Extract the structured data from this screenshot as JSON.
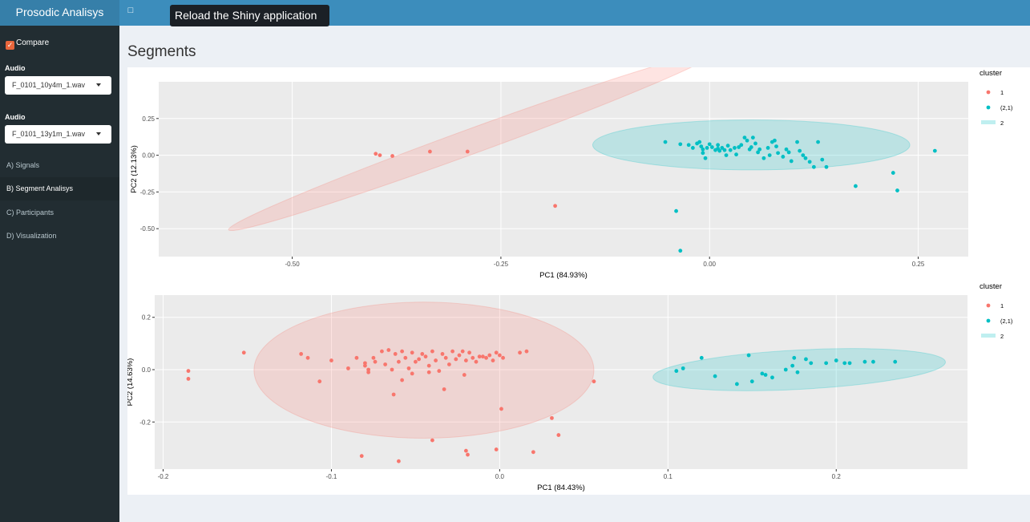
{
  "app": {
    "title": "Prosodic Analisys",
    "tooltip": "Reload the Shiny application"
  },
  "sidebar": {
    "compare_label": "Compare",
    "compare_checked": true,
    "audio1": {
      "label": "Audio",
      "value": "F_0101_10y4m_1.wav"
    },
    "audio2": {
      "label": "Audio",
      "value": "F_0101_13y1m_1.wav"
    },
    "menu": [
      {
        "label": "A) Signals",
        "active": false
      },
      {
        "label": "B) Segment Analisys",
        "active": true
      },
      {
        "label": "C) Participants",
        "active": false
      },
      {
        "label": "D) Visualization",
        "active": false
      }
    ]
  },
  "main": {
    "title": "Segments"
  },
  "colors": {
    "cluster1": "#f8766d",
    "cluster2": "#00bfc4",
    "panel_bg": "#ebebeb",
    "header": "#3c8dbc",
    "sidebar": "#222d32"
  },
  "chart_data": [
    {
      "type": "scatter",
      "xlabel": "PC1 (84.93%)",
      "ylabel": "PC2 (12.13%)",
      "xlim": [
        -0.66,
        0.31
      ],
      "ylim": [
        -0.69,
        0.5
      ],
      "xticks": [
        -0.5,
        -0.25,
        0.0,
        0.25
      ],
      "xtick_labels": [
        "-0.50",
        "-0.25",
        "0.00",
        "0.25"
      ],
      "yticks": [
        0.25,
        0.0,
        -0.25,
        -0.5
      ],
      "ytick_labels": [
        "0.25",
        "0.00",
        "-0.25",
        "-0.50"
      ],
      "legend": {
        "title": "cluster",
        "entries": [
          "1",
          "(2,1)",
          "2"
        ],
        "position": "right"
      },
      "series": [
        {
          "name": "1",
          "color": "#f8766d",
          "points": [
            [
              -0.4,
              0.01
            ],
            [
              -0.395,
              0.0
            ],
            [
              -0.38,
              -0.005
            ],
            [
              -0.335,
              0.025
            ],
            [
              -0.29,
              0.025
            ],
            [
              -0.185,
              -0.345
            ]
          ]
        },
        {
          "name": "(2,1)",
          "color": "#00bfc4",
          "points": [
            [
              -0.053,
              0.09
            ],
            [
              -0.035,
              0.075
            ],
            [
              -0.025,
              0.07
            ],
            [
              -0.02,
              0.05
            ],
            [
              -0.015,
              0.08
            ],
            [
              -0.012,
              0.09
            ],
            [
              -0.01,
              0.06
            ],
            [
              -0.008,
              0.04
            ],
            [
              -0.008,
              0.015
            ],
            [
              -0.005,
              -0.02
            ],
            [
              -0.003,
              0.05
            ],
            [
              0.0,
              0.075
            ],
            [
              0.003,
              0.055
            ],
            [
              0.007,
              0.035
            ],
            [
              0.01,
              0.07
            ],
            [
              0.01,
              0.045
            ],
            [
              0.012,
              0.03
            ],
            [
              0.015,
              0.05
            ],
            [
              0.018,
              0.035
            ],
            [
              0.02,
              0.0
            ],
            [
              0.022,
              0.065
            ],
            [
              0.025,
              0.035
            ],
            [
              0.03,
              0.05
            ],
            [
              0.032,
              0.005
            ],
            [
              0.035,
              0.055
            ],
            [
              0.038,
              0.07
            ],
            [
              0.042,
              0.12
            ],
            [
              0.045,
              0.1
            ],
            [
              0.048,
              0.04
            ],
            [
              0.05,
              0.055
            ],
            [
              0.052,
              0.12
            ],
            [
              0.055,
              0.08
            ],
            [
              0.058,
              0.02
            ],
            [
              0.06,
              0.04
            ],
            [
              0.065,
              -0.02
            ],
            [
              0.07,
              0.05
            ],
            [
              0.072,
              0.0
            ],
            [
              0.075,
              0.09
            ],
            [
              0.078,
              0.1
            ],
            [
              0.08,
              0.06
            ],
            [
              0.082,
              0.015
            ],
            [
              0.088,
              -0.01
            ],
            [
              0.092,
              0.04
            ],
            [
              0.095,
              0.02
            ],
            [
              0.098,
              -0.04
            ],
            [
              0.105,
              0.09
            ],
            [
              0.108,
              0.03
            ],
            [
              0.112,
              0.0
            ],
            [
              0.115,
              -0.02
            ],
            [
              0.12,
              -0.045
            ],
            [
              0.125,
              -0.08
            ],
            [
              0.13,
              0.09
            ],
            [
              0.135,
              -0.03
            ],
            [
              0.14,
              -0.08
            ],
            [
              0.175,
              -0.21
            ],
            [
              0.22,
              -0.12
            ],
            [
              0.225,
              -0.24
            ],
            [
              0.27,
              0.03
            ],
            [
              -0.04,
              -0.38
            ],
            [
              -0.035,
              -0.65
            ]
          ]
        }
      ],
      "ellipses": [
        {
          "cluster": "1",
          "color": "#f8766d",
          "center": [
            -0.285,
            0.095
          ],
          "radii": [
            0.31,
            0.085
          ],
          "angle_deg": -20
        },
        {
          "cluster": "2",
          "color": "#00bfc4",
          "center": [
            0.05,
            0.07
          ],
          "radii": [
            0.19,
            0.17
          ],
          "angle_deg": 0
        }
      ]
    },
    {
      "type": "scatter",
      "xlabel": "PC1 (84.43%)",
      "ylabel": "PC2 (14.63%)",
      "xlim": [
        -0.205,
        0.278
      ],
      "ylim": [
        -0.38,
        0.285
      ],
      "xticks": [
        -0.2,
        -0.1,
        0.0,
        0.1,
        0.2
      ],
      "xtick_labels": [
        "-0.2",
        "-0.1",
        "0.0",
        "0.1",
        "0.2"
      ],
      "yticks": [
        0.2,
        0.0,
        -0.2
      ],
      "ytick_labels": [
        "0.2",
        "0.0",
        "-0.2"
      ],
      "legend": {
        "title": "cluster",
        "entries": [
          "1",
          "(2,1)",
          "2"
        ],
        "position": "right"
      },
      "series": [
        {
          "name": "1",
          "color": "#f8766d",
          "points": [
            [
              -0.185,
              -0.005
            ],
            [
              -0.185,
              -0.035
            ],
            [
              -0.152,
              0.065
            ],
            [
              -0.118,
              0.06
            ],
            [
              -0.114,
              0.045
            ],
            [
              -0.107,
              -0.045
            ],
            [
              -0.1,
              0.035
            ],
            [
              -0.09,
              0.005
            ],
            [
              -0.085,
              0.045
            ],
            [
              -0.08,
              0.025
            ],
            [
              -0.08,
              0.015
            ],
            [
              -0.078,
              0.0
            ],
            [
              -0.078,
              -0.01
            ],
            [
              -0.075,
              0.045
            ],
            [
              -0.074,
              0.03
            ],
            [
              -0.07,
              0.07
            ],
            [
              -0.068,
              0.02
            ],
            [
              -0.066,
              0.075
            ],
            [
              -0.064,
              0.0
            ],
            [
              -0.062,
              0.06
            ],
            [
              -0.06,
              0.03
            ],
            [
              -0.058,
              0.07
            ],
            [
              -0.056,
              0.045
            ],
            [
              -0.054,
              0.005
            ],
            [
              -0.052,
              0.065
            ],
            [
              -0.05,
              0.03
            ],
            [
              -0.048,
              0.04
            ],
            [
              -0.046,
              0.06
            ],
            [
              -0.044,
              0.05
            ],
            [
              -0.042,
              0.015
            ],
            [
              -0.04,
              0.07
            ],
            [
              -0.038,
              0.035
            ],
            [
              -0.036,
              -0.005
            ],
            [
              -0.034,
              0.06
            ],
            [
              -0.032,
              0.045
            ],
            [
              -0.03,
              0.02
            ],
            [
              -0.028,
              0.07
            ],
            [
              -0.026,
              0.04
            ],
            [
              -0.024,
              0.055
            ],
            [
              -0.022,
              0.07
            ],
            [
              -0.02,
              0.035
            ],
            [
              -0.018,
              0.065
            ],
            [
              -0.016,
              0.045
            ],
            [
              -0.014,
              0.03
            ],
            [
              -0.012,
              0.05
            ],
            [
              -0.01,
              0.05
            ],
            [
              -0.008,
              0.045
            ],
            [
              -0.006,
              0.055
            ],
            [
              -0.004,
              0.035
            ],
            [
              -0.002,
              0.065
            ],
            [
              0.0,
              0.055
            ],
            [
              0.002,
              0.045
            ],
            [
              0.012,
              0.065
            ],
            [
              0.016,
              0.07
            ],
            [
              -0.063,
              -0.095
            ],
            [
              -0.058,
              -0.04
            ],
            [
              -0.052,
              -0.015
            ],
            [
              -0.042,
              -0.01
            ],
            [
              -0.033,
              -0.075
            ],
            [
              -0.021,
              -0.02
            ],
            [
              0.001,
              -0.15
            ],
            [
              0.031,
              -0.185
            ],
            [
              0.035,
              -0.25
            ],
            [
              -0.04,
              -0.27
            ],
            [
              -0.02,
              -0.31
            ],
            [
              -0.019,
              -0.325
            ],
            [
              -0.002,
              -0.305
            ],
            [
              0.02,
              -0.315
            ],
            [
              -0.082,
              -0.33
            ],
            [
              -0.06,
              -0.35
            ],
            [
              0.056,
              -0.045
            ]
          ]
        },
        {
          "name": "(2,1)",
          "color": "#00bfc4",
          "points": [
            [
              0.105,
              -0.005
            ],
            [
              0.109,
              0.005
            ],
            [
              0.12,
              0.045
            ],
            [
              0.128,
              -0.025
            ],
            [
              0.141,
              -0.055
            ],
            [
              0.148,
              0.055
            ],
            [
              0.15,
              -0.045
            ],
            [
              0.156,
              -0.015
            ],
            [
              0.158,
              -0.02
            ],
            [
              0.162,
              -0.03
            ],
            [
              0.17,
              0.0
            ],
            [
              0.174,
              0.015
            ],
            [
              0.175,
              0.045
            ],
            [
              0.177,
              -0.01
            ],
            [
              0.182,
              0.04
            ],
            [
              0.185,
              0.025
            ],
            [
              0.194,
              0.025
            ],
            [
              0.2,
              0.035
            ],
            [
              0.205,
              0.025
            ],
            [
              0.208,
              0.025
            ],
            [
              0.217,
              0.03
            ],
            [
              0.222,
              0.03
            ],
            [
              0.235,
              0.03
            ]
          ]
        }
      ],
      "ellipses": [
        {
          "cluster": "1",
          "color": "#f8766d",
          "center": [
            -0.045,
            -0.002
          ],
          "radii": [
            0.101,
            0.26
          ],
          "angle_deg": 0
        },
        {
          "cluster": "2",
          "color": "#00bfc4",
          "center": [
            0.178,
            0.0
          ],
          "radii": [
            0.087,
            0.075
          ],
          "angle_deg": -3
        }
      ]
    }
  ]
}
